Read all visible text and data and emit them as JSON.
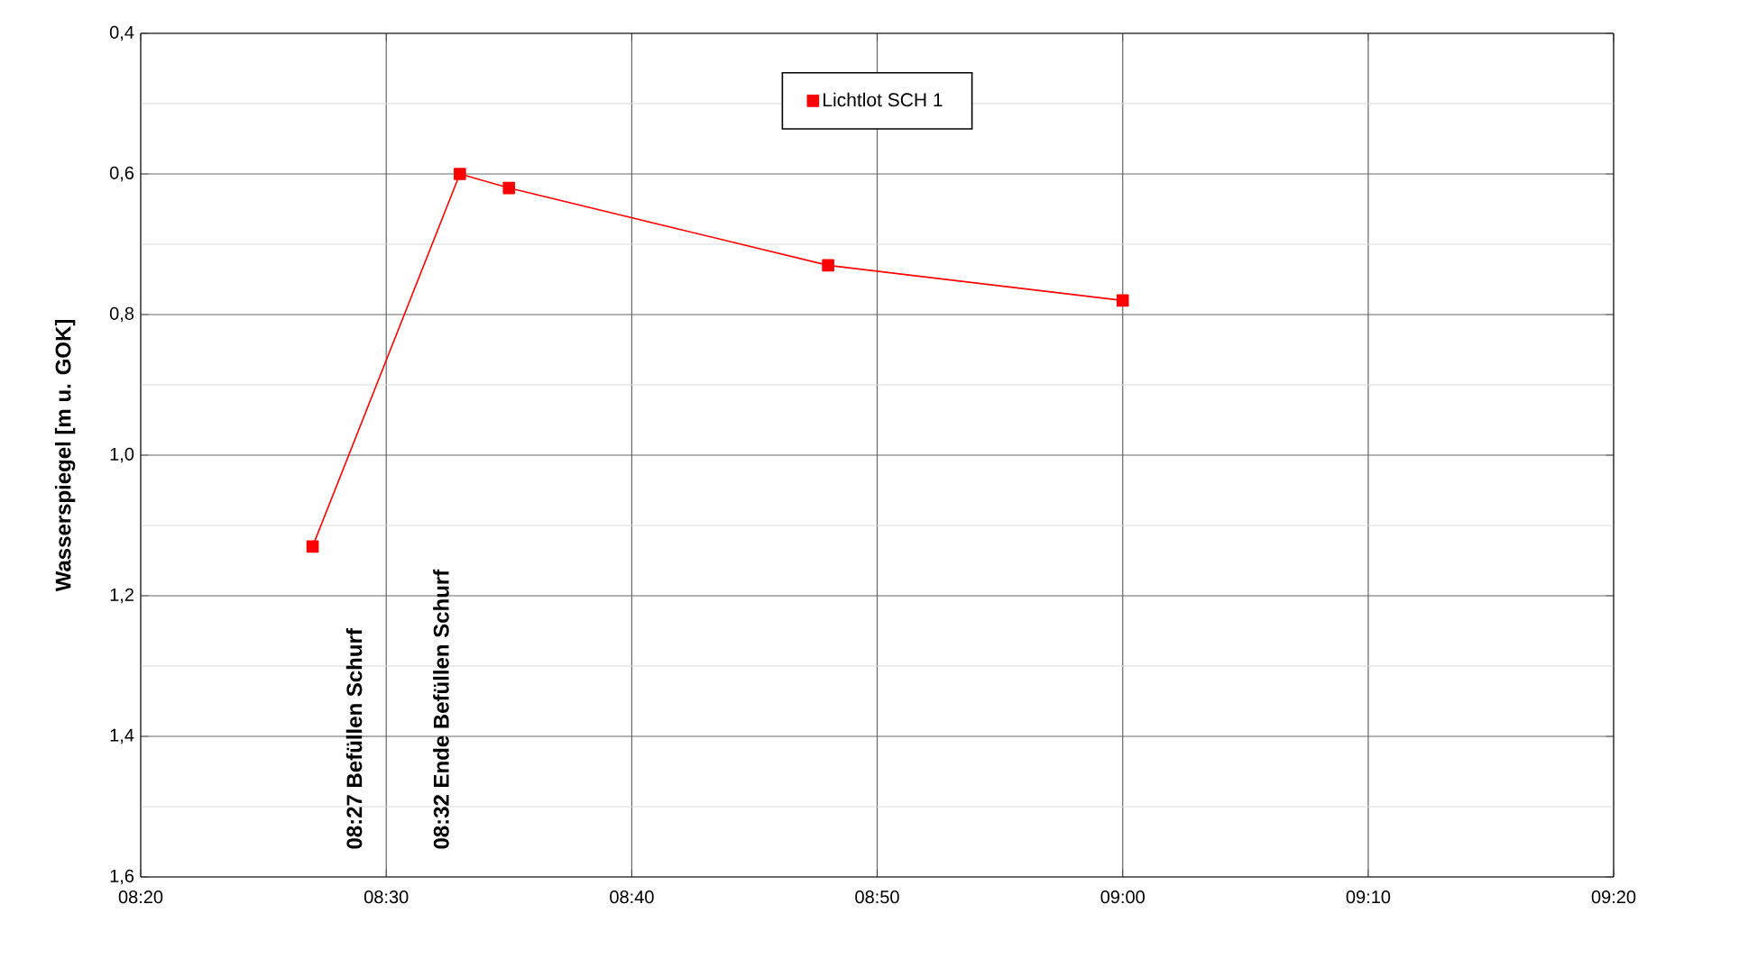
{
  "chart_data": {
    "type": "line",
    "ylabel": "Wasserspiegel [m u. GOK]",
    "x": [
      8.45,
      8.55,
      8.5833,
      8.8,
      9.0
    ],
    "series": [
      {
        "name": "Lichtlot SCH 1",
        "color": "#ff0000",
        "values": [
          1.13,
          0.6,
          0.62,
          0.73,
          0.78
        ]
      }
    ],
    "xlim": [
      8.3333,
      9.3333
    ],
    "xticks": [
      {
        "value": 8.3333,
        "label": "08:20"
      },
      {
        "value": 8.5,
        "label": "08:30"
      },
      {
        "value": 8.6667,
        "label": "08:40"
      },
      {
        "value": 8.8333,
        "label": "08:50"
      },
      {
        "value": 9.0,
        "label": "09:00"
      },
      {
        "value": 9.1667,
        "label": "09:10"
      },
      {
        "value": 9.3333,
        "label": "09:20"
      }
    ],
    "ylim": [
      1.6,
      0.4
    ],
    "yticks": [
      {
        "value": 0.4,
        "label": "0,4"
      },
      {
        "value": 0.6,
        "label": "0,6"
      },
      {
        "value": 0.8,
        "label": "0,8"
      },
      {
        "value": 1.0,
        "label": "1,0"
      },
      {
        "value": 1.2,
        "label": "1,2"
      },
      {
        "value": 1.4,
        "label": "1,4"
      },
      {
        "value": 1.6,
        "label": "1,6"
      }
    ],
    "annotations": [
      "08:27 Befüllen Schurf",
      "08:32 Ende Befüllen Schurf"
    ],
    "grid": true,
    "legend": "top",
    "marker": "square",
    "line_style": "solid"
  }
}
